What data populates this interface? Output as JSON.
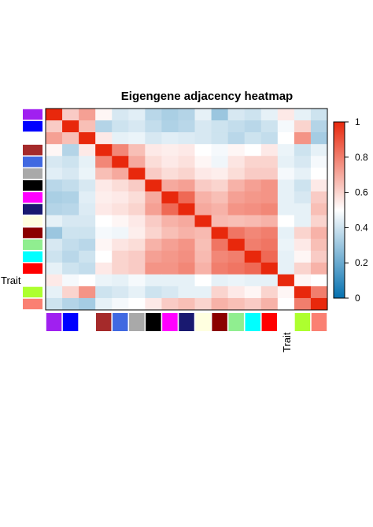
{
  "chart_data": {
    "type": "heatmap",
    "title": "Eigengene adjacency heatmap",
    "modules": [
      "purple",
      "blue",
      "white",
      "brown",
      "royalblue",
      "darkgrey",
      "black",
      "magenta",
      "midnightblue",
      "lightyellow",
      "darkred",
      "lightgreen",
      "cyan",
      "red",
      "Trait",
      "greenyellow",
      "salmon"
    ],
    "module_colors": [
      "#A020F0",
      "#0000FF",
      "#FFFFFF",
      "#A52A2A",
      "#4169E1",
      "#A9A9A9",
      "#000000",
      "#FF00FF",
      "#191970",
      "#FFFFE0",
      "#8B0000",
      "#90EE90",
      "#00FFFF",
      "#FF0000",
      "#FFFFFF",
      "#ADFF2F",
      "#FA8072"
    ],
    "trait_label": "Trait",
    "matrix": [
      [
        1.0,
        0.62,
        0.72,
        0.52,
        0.42,
        0.44,
        0.36,
        0.33,
        0.35,
        0.45,
        0.3,
        0.42,
        0.4,
        0.45,
        0.55,
        0.45,
        0.4
      ],
      [
        0.62,
        1.0,
        0.65,
        0.35,
        0.4,
        0.42,
        0.38,
        0.34,
        0.36,
        0.42,
        0.4,
        0.38,
        0.36,
        0.4,
        0.48,
        0.6,
        0.35
      ],
      [
        0.72,
        0.65,
        1.0,
        0.55,
        0.45,
        0.46,
        0.42,
        0.44,
        0.43,
        0.42,
        0.4,
        0.36,
        0.4,
        0.38,
        0.5,
        0.75,
        0.32
      ],
      [
        0.52,
        0.35,
        0.55,
        1.0,
        0.78,
        0.65,
        0.55,
        0.54,
        0.55,
        0.5,
        0.48,
        0.52,
        0.5,
        0.55,
        0.46,
        0.4,
        0.45
      ],
      [
        0.42,
        0.4,
        0.45,
        0.78,
        1.0,
        0.7,
        0.58,
        0.55,
        0.57,
        0.52,
        0.47,
        0.56,
        0.6,
        0.6,
        0.45,
        0.42,
        0.48
      ],
      [
        0.44,
        0.42,
        0.46,
        0.65,
        0.7,
        1.0,
        0.62,
        0.58,
        0.6,
        0.55,
        0.54,
        0.58,
        0.62,
        0.62,
        0.48,
        0.45,
        0.5
      ],
      [
        0.36,
        0.38,
        0.42,
        0.55,
        0.58,
        0.62,
        1.0,
        0.7,
        0.72,
        0.62,
        0.6,
        0.68,
        0.72,
        0.75,
        0.45,
        0.4,
        0.55
      ],
      [
        0.33,
        0.34,
        0.44,
        0.54,
        0.55,
        0.58,
        0.7,
        1.0,
        0.85,
        0.68,
        0.65,
        0.72,
        0.74,
        0.75,
        0.45,
        0.42,
        0.62
      ],
      [
        0.35,
        0.36,
        0.43,
        0.55,
        0.57,
        0.6,
        0.72,
        0.85,
        1.0,
        0.7,
        0.68,
        0.75,
        0.76,
        0.78,
        0.45,
        0.45,
        0.65
      ],
      [
        0.45,
        0.42,
        0.42,
        0.5,
        0.52,
        0.55,
        0.62,
        0.68,
        0.7,
        1.0,
        0.66,
        0.65,
        0.66,
        0.68,
        0.5,
        0.45,
        0.6
      ],
      [
        0.3,
        0.4,
        0.4,
        0.48,
        0.47,
        0.54,
        0.6,
        0.65,
        0.68,
        0.66,
        1.0,
        0.82,
        0.78,
        0.8,
        0.45,
        0.6,
        0.68
      ],
      [
        0.42,
        0.38,
        0.36,
        0.52,
        0.56,
        0.58,
        0.68,
        0.72,
        0.75,
        0.65,
        0.82,
        1.0,
        0.8,
        0.82,
        0.46,
        0.55,
        0.65
      ],
      [
        0.4,
        0.36,
        0.4,
        0.5,
        0.6,
        0.62,
        0.72,
        0.74,
        0.76,
        0.66,
        0.78,
        0.8,
        1.0,
        0.85,
        0.45,
        0.52,
        0.62
      ],
      [
        0.45,
        0.4,
        0.38,
        0.55,
        0.6,
        0.62,
        0.75,
        0.75,
        0.78,
        0.68,
        0.8,
        0.82,
        0.85,
        1.0,
        0.45,
        0.6,
        0.68
      ],
      [
        0.55,
        0.48,
        0.5,
        0.46,
        0.45,
        0.48,
        0.45,
        0.45,
        0.45,
        0.5,
        0.45,
        0.46,
        0.45,
        0.45,
        1.0,
        0.52,
        0.5
      ],
      [
        0.45,
        0.6,
        0.75,
        0.4,
        0.42,
        0.45,
        0.4,
        0.42,
        0.45,
        0.45,
        0.6,
        0.55,
        0.52,
        0.6,
        0.52,
        1.0,
        0.8
      ],
      [
        0.4,
        0.35,
        0.32,
        0.45,
        0.48,
        0.5,
        0.55,
        0.62,
        0.65,
        0.6,
        0.68,
        0.65,
        0.62,
        0.68,
        0.5,
        0.8,
        1.0
      ]
    ],
    "color_scale": {
      "min": 0,
      "max": 1,
      "low": "#0571B0",
      "mid": "#FFFFFF",
      "high": "#E8280C"
    },
    "legend_ticks": [
      "0",
      "0.2",
      "0.4",
      "0.6",
      "0.8",
      "1"
    ],
    "legend_tick_values": [
      0,
      0.2,
      0.4,
      0.6,
      0.8,
      1
    ],
    "legend_placement": "right"
  }
}
